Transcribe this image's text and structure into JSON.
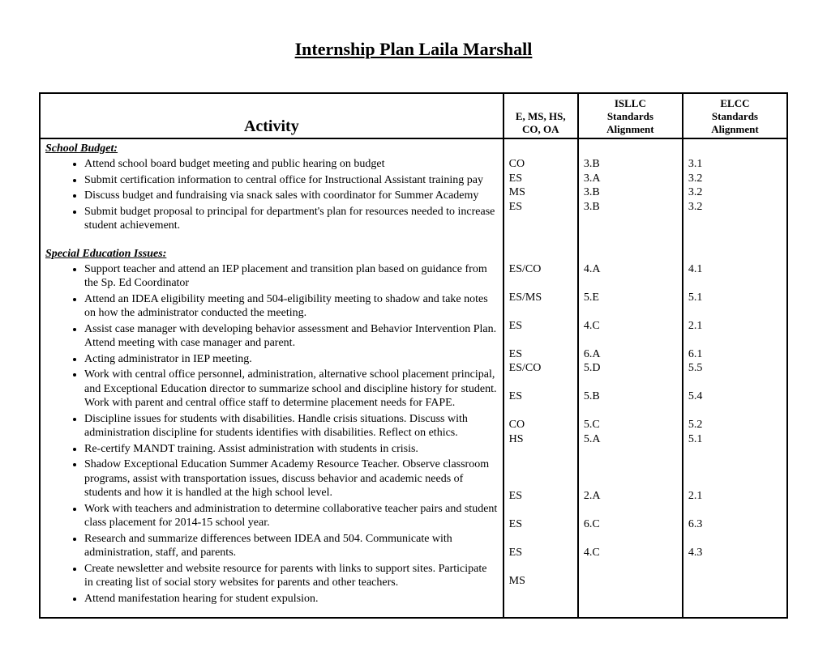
{
  "title": "Internship Plan Laila Marshall",
  "headers": {
    "activity": "Activity",
    "level_line1": "E, MS, HS,",
    "level_line2": "CO, OA",
    "isllc_line1": "ISLLC",
    "isllc_line2": "Standards",
    "isllc_line3": "Alignment",
    "elcc_line1": "ELCC",
    "elcc_line2": "Standards",
    "elcc_line3": "Alignment"
  },
  "sections": [
    {
      "title": "School Budget:",
      "rows": [
        {
          "activity": "Attend school board budget meeting and public hearing on budget",
          "level": "CO",
          "isllc": "3.B",
          "elcc": "3.1"
        },
        {
          "activity": "Submit certification information to central office for Instructional Assistant training pay",
          "level": "ES",
          "isllc": "3.A",
          "elcc": "3.2"
        },
        {
          "activity": "Discuss budget and fundraising via snack sales with coordinator for Summer Academy",
          "level": "MS",
          "isllc": "3.B",
          "elcc": "3.2"
        },
        {
          "activity": "Submit budget proposal to principal for department's plan for resources needed to increase student achievement.",
          "level": "ES",
          "isllc": "3.B",
          "elcc": "3.2"
        }
      ]
    },
    {
      "title": "Special Education Issues:",
      "rows": [
        {
          "activity": "Support teacher and attend an IEP placement and transition plan based on guidance from the Sp. Ed Coordinator",
          "level": "ES/CO",
          "isllc": "4.A",
          "elcc": "4.1"
        },
        {
          "activity": "Attend an IDEA eligibility meeting and 504-eligibility meeting to shadow and take notes on how the administrator conducted the meeting.",
          "level": "ES/MS",
          "isllc": "5.E",
          "elcc": "5.1"
        },
        {
          "activity": "Assist case manager with developing behavior assessment and Behavior Intervention Plan.  Attend meeting with case manager and parent.",
          "level": "ES",
          "isllc": "4.C",
          "elcc": "2.1"
        },
        {
          "activity": "Acting administrator in IEP meeting.",
          "level": "ES",
          "isllc": "6.A",
          "elcc": "6.1"
        },
        {
          "activity": "Work with central office personnel, administration, alternative school placement principal, and Exceptional Education director to summarize school and discipline history for student.  Work with parent and central office staff to determine placement needs for FAPE.",
          "level": "ES/CO",
          "isllc": "5.D",
          "elcc": "5.5",
          "extra_after": [
            {
              "level": "ES",
              "isllc": "5.B",
              "elcc": "5.4"
            }
          ]
        },
        {
          "activity": "Discipline issues for students with disabilities.  Handle crisis situations.  Discuss with administration discipline for students identifies with disabilities.  Reflect on ethics.",
          "level": "CO",
          "isllc": "5.C",
          "elcc": "5.2"
        },
        {
          "activity": "Re-certify MANDT training. Assist administration with students in crisis.",
          "level": "HS",
          "isllc": "5.A",
          "elcc": "5.1"
        },
        {
          "activity": "Shadow Exceptional Education Summer Academy Resource Teacher.  Observe classroom programs, assist with transportation issues, discuss behavior and academic needs of students and how it is handled at the high school level.",
          "level": "",
          "isllc": "",
          "elcc": ""
        },
        {
          "activity": "Work with teachers and administration to determine collaborative teacher pairs and student class placement for 2014-15 school year.",
          "level": "ES",
          "isllc": "2.A",
          "elcc": "2.1"
        },
        {
          "activity": "Research and summarize differences between IDEA and 504.  Communicate with administration, staff, and parents.",
          "level": "ES",
          "isllc": "6.C",
          "elcc": "6.3"
        },
        {
          "activity": "Create newsletter and website resource for parents with links to support sites.  Participate in creating list of social story websites for parents and other teachers.",
          "level": "ES",
          "isllc": "4.C",
          "elcc": "4.3"
        },
        {
          "activity": "Attend manifestation hearing for student expulsion.",
          "level": "MS",
          "isllc": "",
          "elcc": ""
        }
      ]
    }
  ],
  "section1_codes": {
    "levels": [
      "CO",
      "ES",
      "MS",
      "ES"
    ],
    "isllc": [
      "3.B",
      "3.A",
      "3.B",
      "3.B"
    ],
    "elcc": [
      "3.1",
      "3.2",
      "3.2",
      "3.2"
    ]
  },
  "section2_codes": {
    "levels": [
      "ES/CO",
      "ES/MS",
      "ES",
      "ES",
      "ES/CO",
      "",
      "ES",
      "CO",
      "HS",
      "",
      "",
      "ES",
      "",
      "ES",
      "",
      "ES",
      "MS"
    ],
    "isllc": [
      "4.A",
      "5.E",
      "4.C",
      "6.A",
      "5.D",
      "",
      "5.B",
      "5.C",
      "5.A",
      "",
      "",
      "2.A",
      "",
      "6.C",
      "",
      "4.C",
      ""
    ],
    "elcc": [
      "4.1",
      "5.1",
      "2.1",
      "6.1",
      "5.5",
      "",
      "5.4",
      "5.2",
      "5.1",
      "",
      "",
      "2.1",
      "",
      "6.3",
      "",
      "4.3",
      ""
    ]
  }
}
